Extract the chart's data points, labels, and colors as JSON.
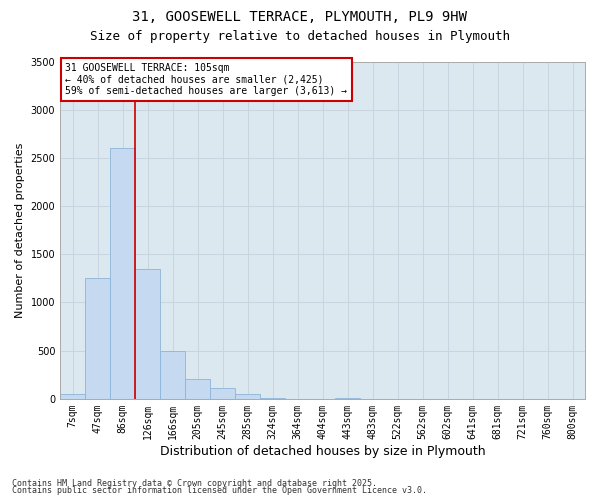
{
  "title_line1": "31, GOOSEWELL TERRACE, PLYMOUTH, PL9 9HW",
  "title_line2": "Size of property relative to detached houses in Plymouth",
  "xlabel": "Distribution of detached houses by size in Plymouth",
  "ylabel": "Number of detached properties",
  "categories": [
    "7sqm",
    "47sqm",
    "86sqm",
    "126sqm",
    "166sqm",
    "205sqm",
    "245sqm",
    "285sqm",
    "324sqm",
    "364sqm",
    "404sqm",
    "443sqm",
    "483sqm",
    "522sqm",
    "562sqm",
    "602sqm",
    "641sqm",
    "681sqm",
    "721sqm",
    "760sqm",
    "800sqm"
  ],
  "values": [
    50,
    1250,
    2600,
    1350,
    500,
    205,
    115,
    50,
    5,
    0,
    0,
    5,
    0,
    0,
    0,
    0,
    0,
    0,
    0,
    0,
    0
  ],
  "bar_color": "#c5d9f1",
  "bar_edge_color": "#8eb4d8",
  "vline_color": "#cc0000",
  "vline_pos": 2.5,
  "annotation_text": "31 GOOSEWELL TERRACE: 105sqm\n← 40% of detached houses are smaller (2,425)\n59% of semi-detached houses are larger (3,613) →",
  "annotation_box_edgecolor": "#cc0000",
  "ylim": [
    0,
    3500
  ],
  "yticks": [
    0,
    500,
    1000,
    1500,
    2000,
    2500,
    3000,
    3500
  ],
  "grid_color": "#c8d4e0",
  "bg_color": "#dce8f0",
  "fig_bg_color": "#ffffff",
  "footer1": "Contains HM Land Registry data © Crown copyright and database right 2025.",
  "footer2": "Contains public sector information licensed under the Open Government Licence v3.0.",
  "title_fontsize": 10,
  "subtitle_fontsize": 9,
  "ylabel_fontsize": 8,
  "xlabel_fontsize": 9,
  "tick_fontsize": 7,
  "annot_fontsize": 7,
  "footer_fontsize": 6
}
